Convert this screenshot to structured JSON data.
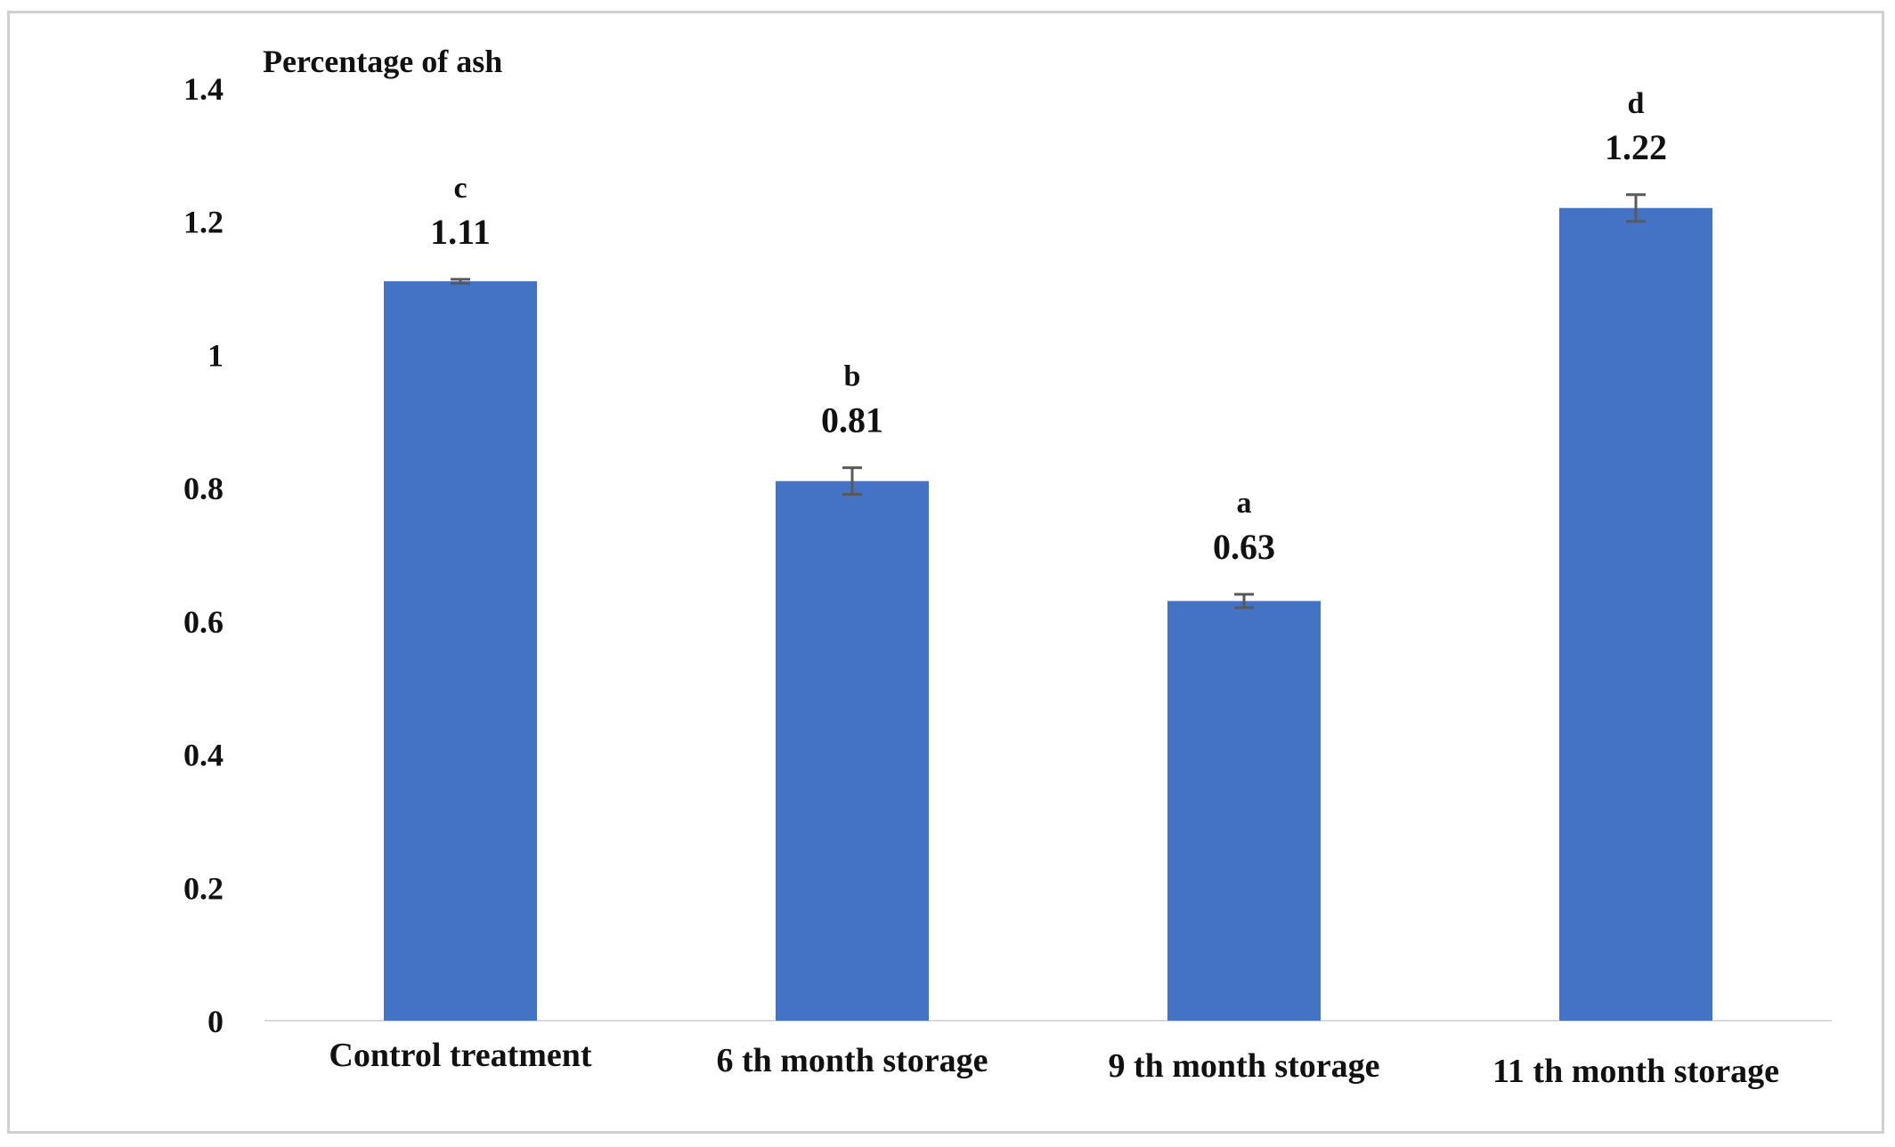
{
  "chart_data": {
    "type": "bar",
    "title": "",
    "ylabel": "Percentage of ash",
    "xlabel": "",
    "categories": [
      "Control treatment",
      "6 th month storage",
      "9 th month storage",
      "11 th month storage"
    ],
    "values": [
      1.11,
      0.81,
      0.63,
      1.22
    ],
    "data_labels": [
      "1.11",
      "0.81",
      "0.63",
      "1.22"
    ],
    "group_letters": [
      "c",
      "b",
      "a",
      "d"
    ],
    "error": [
      0.003,
      0.02,
      0.01,
      0.02
    ],
    "ylim": [
      0,
      1.4
    ],
    "yticks": [
      0,
      0.2,
      0.4,
      0.6,
      0.8,
      1,
      1.2,
      1.4
    ],
    "ytick_labels": [
      "0",
      "0.2",
      "0.4",
      "0.6",
      "0.8",
      "1",
      "1.2",
      "1.4"
    ],
    "grid": false,
    "legend": "none",
    "bar_color": "#4472C4",
    "error_bar_color": "#595959"
  }
}
